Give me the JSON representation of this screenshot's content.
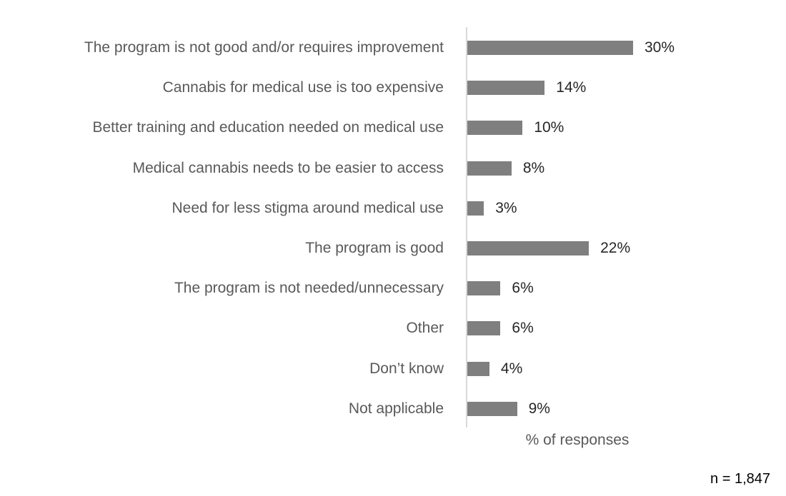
{
  "chart_data": {
    "type": "bar",
    "orientation": "horizontal",
    "categories": [
      "The program is not good and/or requires improvement",
      "Cannabis for medical use is too expensive",
      "Better training and education needed on medical use",
      "Medical cannabis needs to be easier to access",
      "Need for less stigma around medical use",
      "The program is good",
      "The program is not needed/unnecessary",
      "Other",
      "Don’t know",
      "Not applicable"
    ],
    "values": [
      30,
      14,
      10,
      8,
      3,
      22,
      6,
      6,
      4,
      9
    ],
    "value_labels": [
      "30%",
      "14%",
      "10%",
      "8%",
      "3%",
      "22%",
      "6%",
      "6%",
      "4%",
      "9%"
    ],
    "title": "",
    "xlabel": "% of responses",
    "ylabel": "",
    "xlim": [
      0,
      30
    ],
    "grid": false,
    "legend": false,
    "note": "n = 1,847",
    "colors": {
      "bar": "#7f7f7f",
      "category_label": "#595959",
      "value_label": "#262626",
      "axis_line": "#d9d9d9",
      "note_text": "#000000",
      "background": "#ffffff"
    }
  }
}
